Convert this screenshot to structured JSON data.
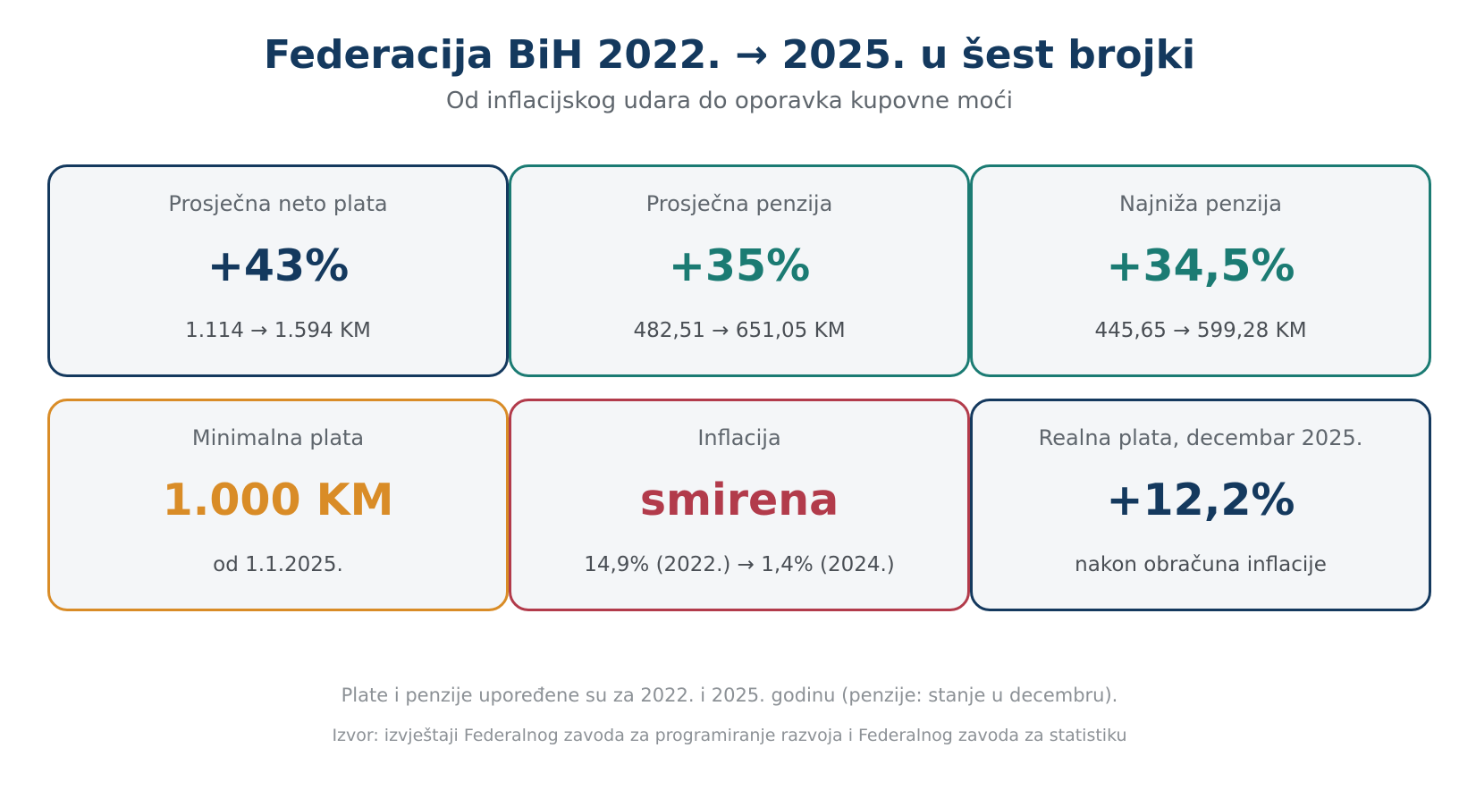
{
  "header": {
    "title": "Federacija BiH 2022. → 2025. u šest brojki",
    "subtitle": "Od inflacijskog udara do oporavka kupovne moći"
  },
  "colors": {
    "navy": "#14395e",
    "teal": "#1b7b73",
    "orange": "#d98c27",
    "red": "#b23b4b",
    "card_background": "#f4f6f8",
    "muted_text": "#5f666d"
  },
  "cards": [
    {
      "label": "Prosječna neto plata",
      "value": "+43%",
      "detail": "1.114 → 1.594 KM",
      "accent": "#14395e"
    },
    {
      "label": "Prosječna penzija",
      "value": "+35%",
      "detail": "482,51 → 651,05 KM",
      "accent": "#1b7b73"
    },
    {
      "label": "Najniža penzija",
      "value": "+34,5%",
      "detail": "445,65 → 599,28 KM",
      "accent": "#1b7b73"
    },
    {
      "label": "Minimalna plata",
      "value": "1.000 KM",
      "detail": "od 1.1.2025.",
      "accent": "#d98c27"
    },
    {
      "label": "Inflacija",
      "value": "smirena",
      "detail": "14,9% (2022.) → 1,4% (2024.)",
      "accent": "#b23b4b"
    },
    {
      "label": "Realna plata, decembar 2025.",
      "value": "+12,2%",
      "detail": "nakon obračuna inflacije",
      "accent": "#14395e"
    }
  ],
  "footer": {
    "note": "Plate i penzije upoređene su za 2022. i 2025. godinu (penzije: stanje u decembru).",
    "source": "Izvor: izvještaji Federalnog zavoda za programiranje razvoja i Federalnog zavoda za statistiku"
  }
}
